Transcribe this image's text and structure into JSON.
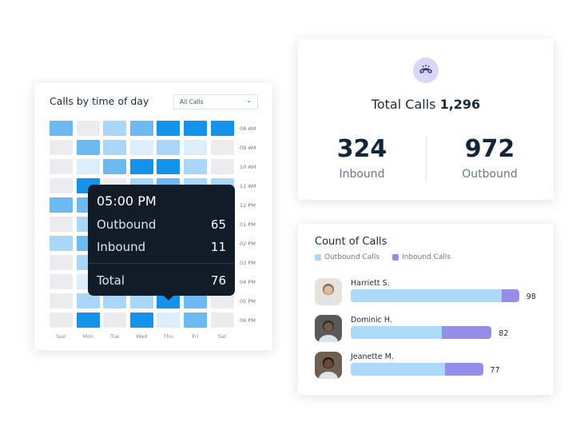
{
  "heatmap_card": {
    "title": "Calls by time of day",
    "filter": {
      "selected": "All Calls"
    },
    "hours": [
      "08 AM",
      "09 AM",
      "10 AM",
      "11 AM",
      "12 PM",
      "01 PM",
      "02 PM",
      "03 PM",
      "04 PM",
      "05 PM",
      "06 PM"
    ],
    "days": [
      "Sun",
      "Mon",
      "Tue",
      "Wed",
      "Thu",
      "Fri",
      "Sat"
    ],
    "levels": [
      [
        3,
        0,
        2,
        3,
        4,
        4,
        4
      ],
      [
        0,
        3,
        2,
        1,
        2,
        1,
        0
      ],
      [
        0,
        1,
        3,
        4,
        4,
        2,
        0
      ],
      [
        0,
        4,
        0,
        2,
        3,
        2,
        2
      ],
      [
        3,
        3,
        2,
        2,
        3,
        2,
        1
      ],
      [
        0,
        2,
        1,
        2,
        3,
        1,
        0
      ],
      [
        2,
        3,
        2,
        1,
        2,
        2,
        0
      ],
      [
        0,
        2,
        1,
        1,
        2,
        1,
        0
      ],
      [
        0,
        1,
        1,
        2,
        2,
        1,
        0
      ],
      [
        0,
        2,
        2,
        2,
        4,
        3,
        0
      ],
      [
        0,
        4,
        0,
        4,
        1,
        3,
        0
      ]
    ],
    "level_colors": [
      "#ececee",
      "#dcedfb",
      "#aad6f8",
      "#6dbaf3",
      "#1592ea"
    ],
    "tooltip": {
      "time": "05:00 PM",
      "outbound_label": "Outbound",
      "outbound": "65",
      "inbound_label": "Inbound",
      "inbound": "11",
      "total_label": "Total",
      "total": "76"
    }
  },
  "total_card": {
    "icon": "phone-icon",
    "title": "Total Calls",
    "total": "1,296",
    "inbound": "324",
    "inbound_label": "Inbound",
    "outbound": "972",
    "outbound_label": "Outbound"
  },
  "count_card": {
    "title": "Count of Calls",
    "legend": [
      {
        "label": "Outbound Calls",
        "color": "#aad9f9"
      },
      {
        "label": "Inbound Calls",
        "color": "#958ee9"
      }
    ],
    "people": [
      {
        "name": "Harriett S.",
        "outbound": 88,
        "inbound": 10,
        "total": "98"
      },
      {
        "name": "Dominic H.",
        "outbound": 53,
        "inbound": 29,
        "total": "82"
      },
      {
        "name": "Jeanette M.",
        "outbound": 55,
        "inbound": 22,
        "total": "77"
      }
    ]
  }
}
